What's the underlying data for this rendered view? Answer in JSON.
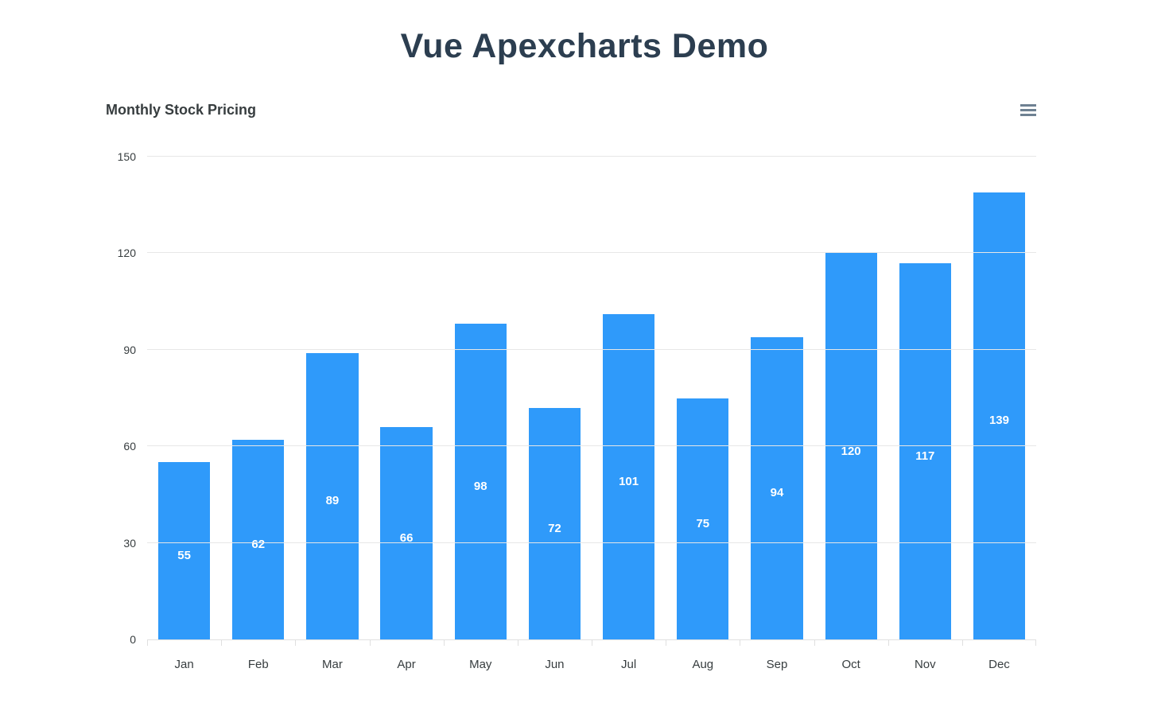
{
  "page": {
    "title": "Vue Apexcharts Demo"
  },
  "chart": {
    "title": "Monthly Stock Pricing",
    "toolbar": {
      "menu_icon": "hamburger-menu-icon"
    },
    "colors": {
      "heading": "#2c3e50",
      "chart_title": "#373d3f",
      "bar": "#2f9afa",
      "data_label": "#ffffff",
      "grid": "#e7e7e7",
      "axis": "#e0e0e0",
      "axis_label": "#373d3f",
      "toolbar_icon": "#6E8192"
    }
  },
  "chart_data": {
    "type": "bar",
    "title": "Monthly Stock Pricing",
    "categories": [
      "Jan",
      "Feb",
      "Mar",
      "Apr",
      "May",
      "Jun",
      "Jul",
      "Aug",
      "Sep",
      "Oct",
      "Nov",
      "Dec"
    ],
    "values": [
      55,
      62,
      89,
      66,
      98,
      72,
      101,
      75,
      94,
      120,
      117,
      139
    ],
    "series_name": "Monthly Stock Pricing",
    "xlabel": "",
    "ylabel": "",
    "ylim": [
      0,
      150
    ],
    "yticks": [
      0,
      30,
      60,
      90,
      120,
      150
    ],
    "grid": true,
    "legend_position": "none",
    "data_labels": true,
    "bar_color": "#2f9afa"
  }
}
